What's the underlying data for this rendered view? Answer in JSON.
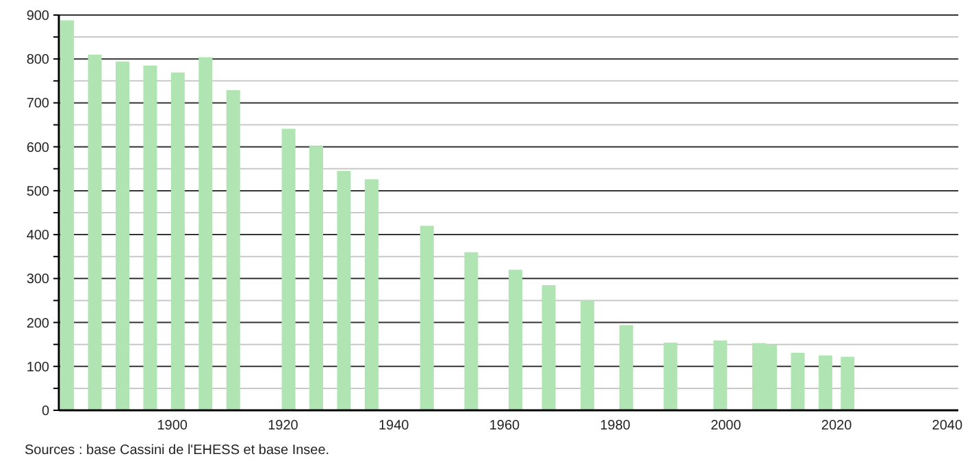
{
  "chart_data": {
    "type": "bar",
    "x": [
      1881,
      1886,
      1891,
      1896,
      1901,
      1906,
      1911,
      1921,
      1926,
      1931,
      1936,
      1946,
      1954,
      1962,
      1968,
      1975,
      1982,
      1990,
      1999,
      2006,
      2008,
      2013,
      2018,
      2022
    ],
    "values": [
      888,
      810,
      794,
      785,
      769,
      804,
      729,
      641,
      601,
      545,
      526,
      420,
      360,
      320,
      285,
      250,
      194,
      154,
      159,
      153,
      149,
      131,
      125,
      122
    ],
    "color": "#b0e4b2",
    "xlim": [
      1879.5,
      2042
    ],
    "xticks": [
      1900,
      1920,
      1940,
      1960,
      1980,
      2000,
      2020,
      2040
    ],
    "ylim": [
      0,
      900
    ],
    "yticks": [
      0,
      {
        "value": 50,
        "label": null
      },
      100,
      {
        "value": 150,
        "label": null
      },
      200,
      {
        "value": 250,
        "label": null
      },
      300,
      {
        "value": 350,
        "label": null
      },
      400,
      {
        "value": 450,
        "label": null
      },
      500,
      {
        "value": 550,
        "label": null
      },
      600,
      {
        "value": 650,
        "label": null
      },
      700,
      {
        "value": 750,
        "label": null
      },
      800,
      {
        "value": 850,
        "label": null
      },
      900
    ],
    "grid": true,
    "annotations": [
      "Sources : base Cassini de l'EHESS et base Insee."
    ]
  }
}
